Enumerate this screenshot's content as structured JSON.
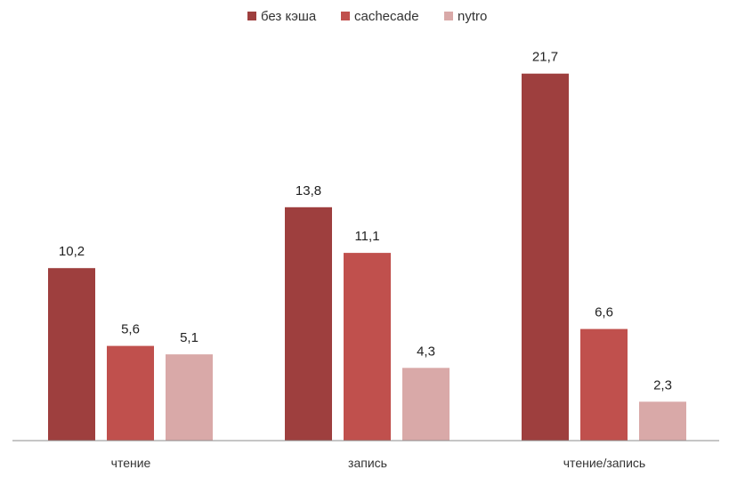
{
  "chart_data": {
    "type": "bar",
    "title": "",
    "xlabel": "",
    "ylabel": "",
    "categories": [
      "чтение",
      "запись",
      "чтение/запись"
    ],
    "series": [
      {
        "name": "без кэша",
        "color": "#9e3f3e",
        "values": [
          10.2,
          13.8,
          21.7
        ],
        "labels": [
          "10,2",
          "13,8",
          "21,7"
        ]
      },
      {
        "name": "cachecade",
        "color": "#c0504d",
        "values": [
          5.6,
          11.1,
          6.6
        ],
        "labels": [
          "5,6",
          "11,1",
          "6,6"
        ]
      },
      {
        "name": "nytro",
        "color": "#d9a9a8",
        "values": [
          5.1,
          4.3,
          2.3
        ],
        "labels": [
          "5,1",
          "4,3",
          "2,3"
        ]
      }
    ],
    "ylim": [
      0,
      25
    ],
    "grid": false,
    "legend_position": "top-center"
  }
}
